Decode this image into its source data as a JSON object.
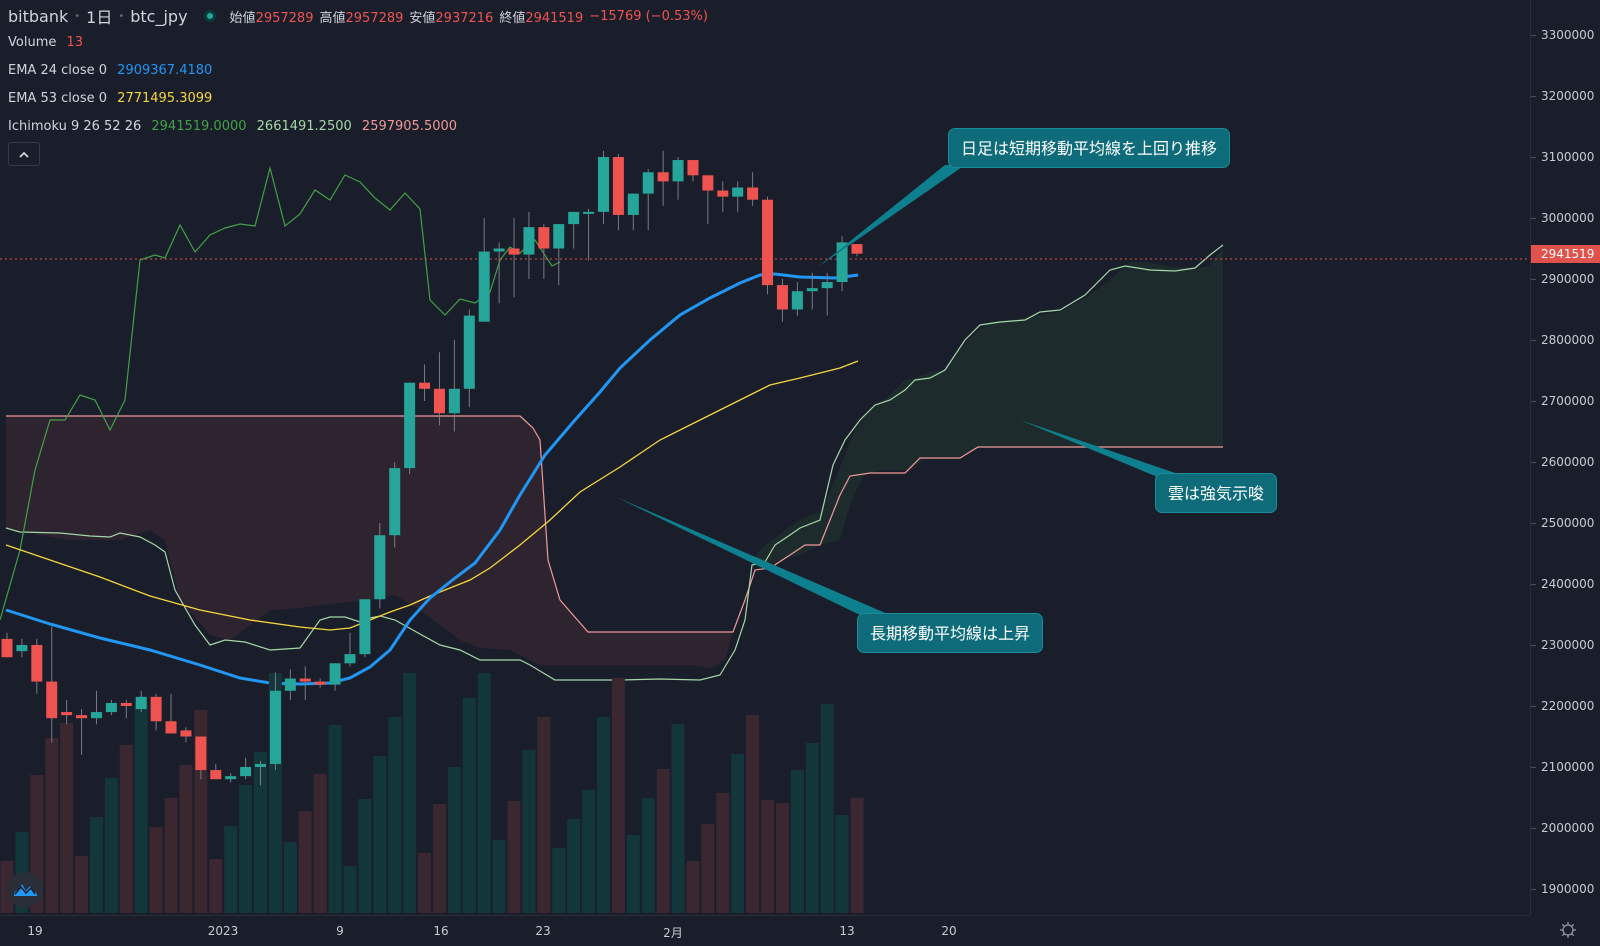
{
  "header": {
    "exchange": "bitbank",
    "interval": "1日",
    "symbol": "btc_jpy",
    "ohlc": [
      {
        "key": "始値",
        "value": "2957289"
      },
      {
        "key": "高値",
        "value": "2957289"
      },
      {
        "key": "安値",
        "value": "2937216"
      },
      {
        "key": "終値",
        "value": "2941519"
      }
    ],
    "change": "−15769 (−0.53%)"
  },
  "legend": {
    "volume": {
      "label": "Volume",
      "value": "13",
      "color": "#ef5350"
    },
    "ema24": {
      "label": "EMA 24 close 0",
      "value": "2909367.4180",
      "color": "#2196f3"
    },
    "ema53": {
      "label": "EMA 53 close 0",
      "value": "2771495.3099",
      "color": "#f5d63d"
    },
    "ichimoku": {
      "label": "Ichimoku 9 26 52 26",
      "v1": "2941519.0000",
      "v1_color": "#43a047",
      "v2": "2661491.2500",
      "v2_color": "#a5d6a7",
      "v3": "2597905.5000",
      "v3_color": "#ef9a9a"
    }
  },
  "collapse_icon": "chevron-up-icon",
  "price_axis": {
    "ticks": [
      "3300000",
      "3200000",
      "3100000",
      "3000000",
      "2900000",
      "2800000",
      "2700000",
      "2600000",
      "2500000",
      "2400000",
      "2300000",
      "2200000",
      "2100000",
      "2000000",
      "1900000"
    ],
    "last_price_label": "2941519",
    "last_price_color": "#e0524b"
  },
  "time_axis": {
    "ticks": [
      {
        "label": "19",
        "x": 35
      },
      {
        "label": "2023",
        "x": 223
      },
      {
        "label": "9",
        "x": 340
      },
      {
        "label": "16",
        "x": 441
      },
      {
        "label": "23",
        "x": 543
      },
      {
        "label": "2月",
        "x": 673
      },
      {
        "label": "13",
        "x": 847
      },
      {
        "label": "20",
        "x": 949
      }
    ]
  },
  "callouts": [
    {
      "text": "日足は短期移動平均線を上回り推移"
    },
    {
      "text": "長期移動平均線は上昇"
    },
    {
      "text": "雲は強気示唆"
    }
  ],
  "colors": {
    "up": "#26a69a",
    "down": "#ef5350",
    "background": "#1a1e2b",
    "callout": "#0e6b7a"
  },
  "chart_data": {
    "type": "candlestick",
    "title": "bitbank 1日 btc_jpy",
    "xlabel": "",
    "ylabel": "",
    "ylim": [
      1900000,
      3300000
    ],
    "x_ticks": [
      "19",
      "2023",
      "9",
      "16",
      "23",
      "2月",
      "13",
      "20"
    ],
    "last_close": 2941519,
    "candles_ohlc": [
      [
        2310000,
        2320000,
        2290000,
        2280000
      ],
      [
        2290000,
        2310000,
        2280000,
        2300000
      ],
      [
        2300000,
        2310000,
        2220000,
        2240000
      ],
      [
        2240000,
        2330000,
        2140000,
        2180000
      ],
      [
        2190000,
        2210000,
        2170000,
        2185000
      ],
      [
        2185000,
        2195000,
        2120000,
        2180000
      ],
      [
        2180000,
        2225000,
        2170000,
        2190000
      ],
      [
        2190000,
        2210000,
        2185000,
        2205000
      ],
      [
        2205000,
        2210000,
        2180000,
        2200000
      ],
      [
        2195000,
        2225000,
        2190000,
        2215000
      ],
      [
        2215000,
        2220000,
        2160000,
        2175000
      ],
      [
        2175000,
        2220000,
        2160000,
        2155000
      ],
      [
        2160000,
        2165000,
        2140000,
        2150000
      ],
      [
        2150000,
        2150000,
        2080000,
        2095000
      ],
      [
        2095000,
        2105000,
        2080000,
        2080000
      ],
      [
        2080000,
        2090000,
        2075000,
        2085000
      ],
      [
        2085000,
        2115000,
        2080000,
        2100000
      ],
      [
        2100000,
        2110000,
        2070000,
        2105000
      ],
      [
        2105000,
        2255000,
        2095000,
        2225000
      ],
      [
        2225000,
        2260000,
        2210000,
        2245000
      ],
      [
        2245000,
        2265000,
        2210000,
        2240000
      ],
      [
        2240000,
        2245000,
        2230000,
        2235000
      ],
      [
        2235000,
        2270000,
        2225000,
        2270000
      ],
      [
        2270000,
        2320000,
        2265000,
        2285000
      ],
      [
        2285000,
        2370000,
        2280000,
        2375000
      ],
      [
        2375000,
        2500000,
        2360000,
        2480000
      ],
      [
        2480000,
        2600000,
        2460000,
        2590000
      ],
      [
        2590000,
        2720000,
        2580000,
        2730000
      ],
      [
        2730000,
        2760000,
        2700000,
        2720000
      ],
      [
        2720000,
        2780000,
        2660000,
        2680000
      ],
      [
        2680000,
        2800000,
        2650000,
        2720000
      ],
      [
        2720000,
        2850000,
        2690000,
        2840000
      ],
      [
        2830000,
        3000000,
        2880000,
        2945000
      ],
      [
        2945000,
        2960000,
        2860000,
        2950000
      ],
      [
        2950000,
        3000000,
        2870000,
        2940000
      ],
      [
        2940000,
        3010000,
        2900000,
        2985000
      ],
      [
        2985000,
        2990000,
        2900000,
        2950000
      ],
      [
        2950000,
        2985000,
        2890000,
        2990000
      ],
      [
        2990000,
        3010000,
        2950000,
        3010000
      ],
      [
        3010000,
        3015000,
        2930000,
        3010000
      ],
      [
        3010000,
        3110000,
        2990000,
        3100000
      ],
      [
        3100000,
        3105000,
        2980000,
        3005000
      ],
      [
        3005000,
        3040000,
        2980000,
        3040000
      ],
      [
        3040000,
        3080000,
        2980000,
        3075000
      ],
      [
        3075000,
        3110000,
        3020000,
        3060000
      ],
      [
        3060000,
        3100000,
        3030000,
        3095000
      ],
      [
        3095000,
        3080000,
        3060000,
        3070000
      ],
      [
        3070000,
        3060000,
        2990000,
        3045000
      ],
      [
        3045000,
        3060000,
        3010000,
        3035000
      ],
      [
        3035000,
        3060000,
        3010000,
        3050000
      ],
      [
        3050000,
        3075000,
        3020000,
        3030000
      ],
      [
        3030000,
        3035000,
        2875000,
        2890000
      ],
      [
        2890000,
        2900000,
        2830000,
        2850000
      ],
      [
        2850000,
        2895000,
        2840000,
        2880000
      ],
      [
        2880000,
        2910000,
        2850000,
        2885000
      ],
      [
        2885000,
        2910000,
        2840000,
        2895000
      ],
      [
        2895000,
        2970000,
        2880000,
        2960000
      ],
      [
        2957289,
        2957289,
        2937216,
        2941519
      ]
    ],
    "series": [
      {
        "name": "EMA 24",
        "color": "#2196f3",
        "last": 2909367.418
      },
      {
        "name": "EMA 53",
        "color": "#f5d63d",
        "last": 2771495.3099
      },
      {
        "name": "Ichimoku conversion/lagging",
        "color": "#43a047",
        "last": 2941519.0
      },
      {
        "name": "Ichimoku leading span A",
        "color": "#a5d6a7",
        "last": 2661491.25
      },
      {
        "name": "Ichimoku leading span B",
        "color": "#ef9a9a",
        "last": 2597905.5
      }
    ],
    "volume_last": 13
  }
}
